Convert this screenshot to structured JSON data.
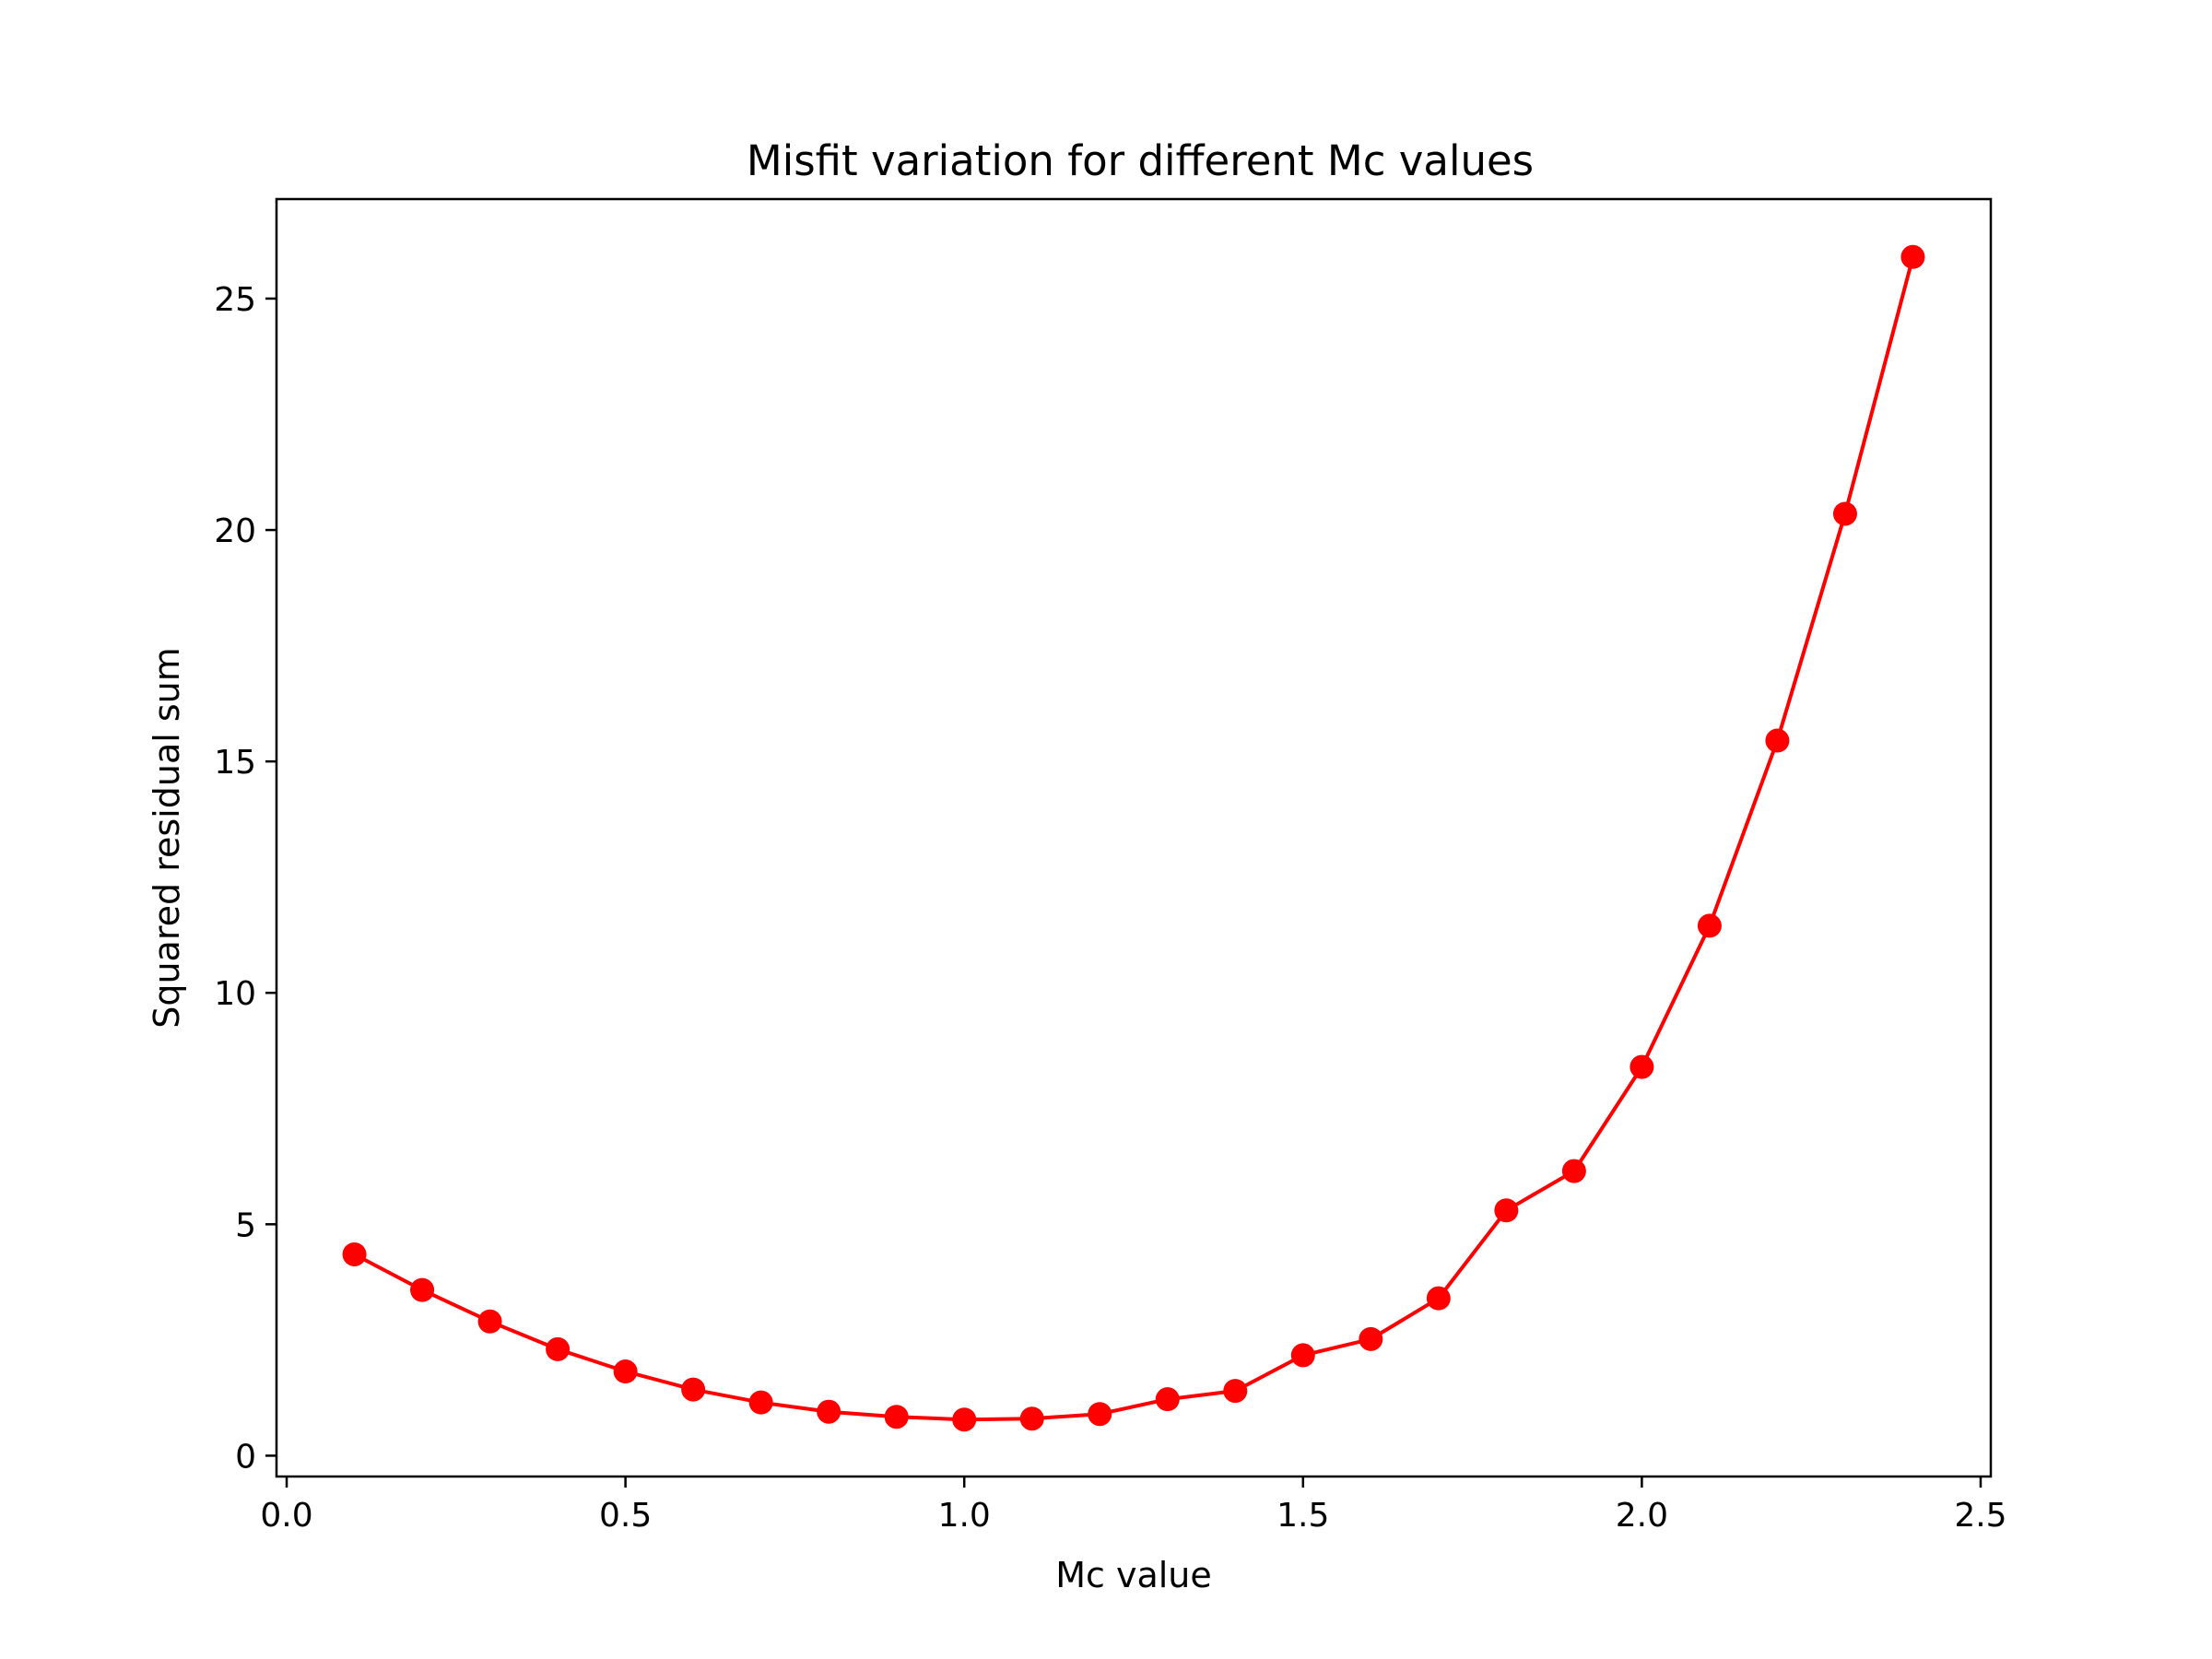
{
  "chart_data": {
    "type": "line",
    "title": "Misfit variation for different Mc values",
    "xlabel": "Mc value",
    "ylabel": "Squared residual sum",
    "xlim": [
      -0.015,
      2.515
    ],
    "ylim": [
      -0.45,
      27.15
    ],
    "xticks": [
      "0.0",
      "0.5",
      "1.0",
      "1.5",
      "2.0",
      "2.5"
    ],
    "yticks": [
      "0",
      "5",
      "10",
      "15",
      "20",
      "25"
    ],
    "grid": false,
    "legend": "none",
    "series": [
      {
        "color": "#ff0000",
        "marker": "circle",
        "x": [
          0.1,
          0.2,
          0.3,
          0.4,
          0.5,
          0.6,
          0.7,
          0.8,
          0.9,
          1.0,
          1.1,
          1.2,
          1.3,
          1.4,
          1.5,
          1.6,
          1.7,
          1.8,
          1.9,
          2.0,
          2.1,
          2.2,
          2.3,
          2.4
        ],
        "y": [
          4.35,
          3.58,
          2.9,
          2.3,
          1.82,
          1.43,
          1.15,
          0.95,
          0.84,
          0.78,
          0.8,
          0.9,
          1.22,
          1.4,
          2.17,
          2.52,
          3.4,
          5.3,
          6.15,
          8.4,
          11.45,
          15.45,
          20.35,
          25.9
        ]
      }
    ]
  }
}
